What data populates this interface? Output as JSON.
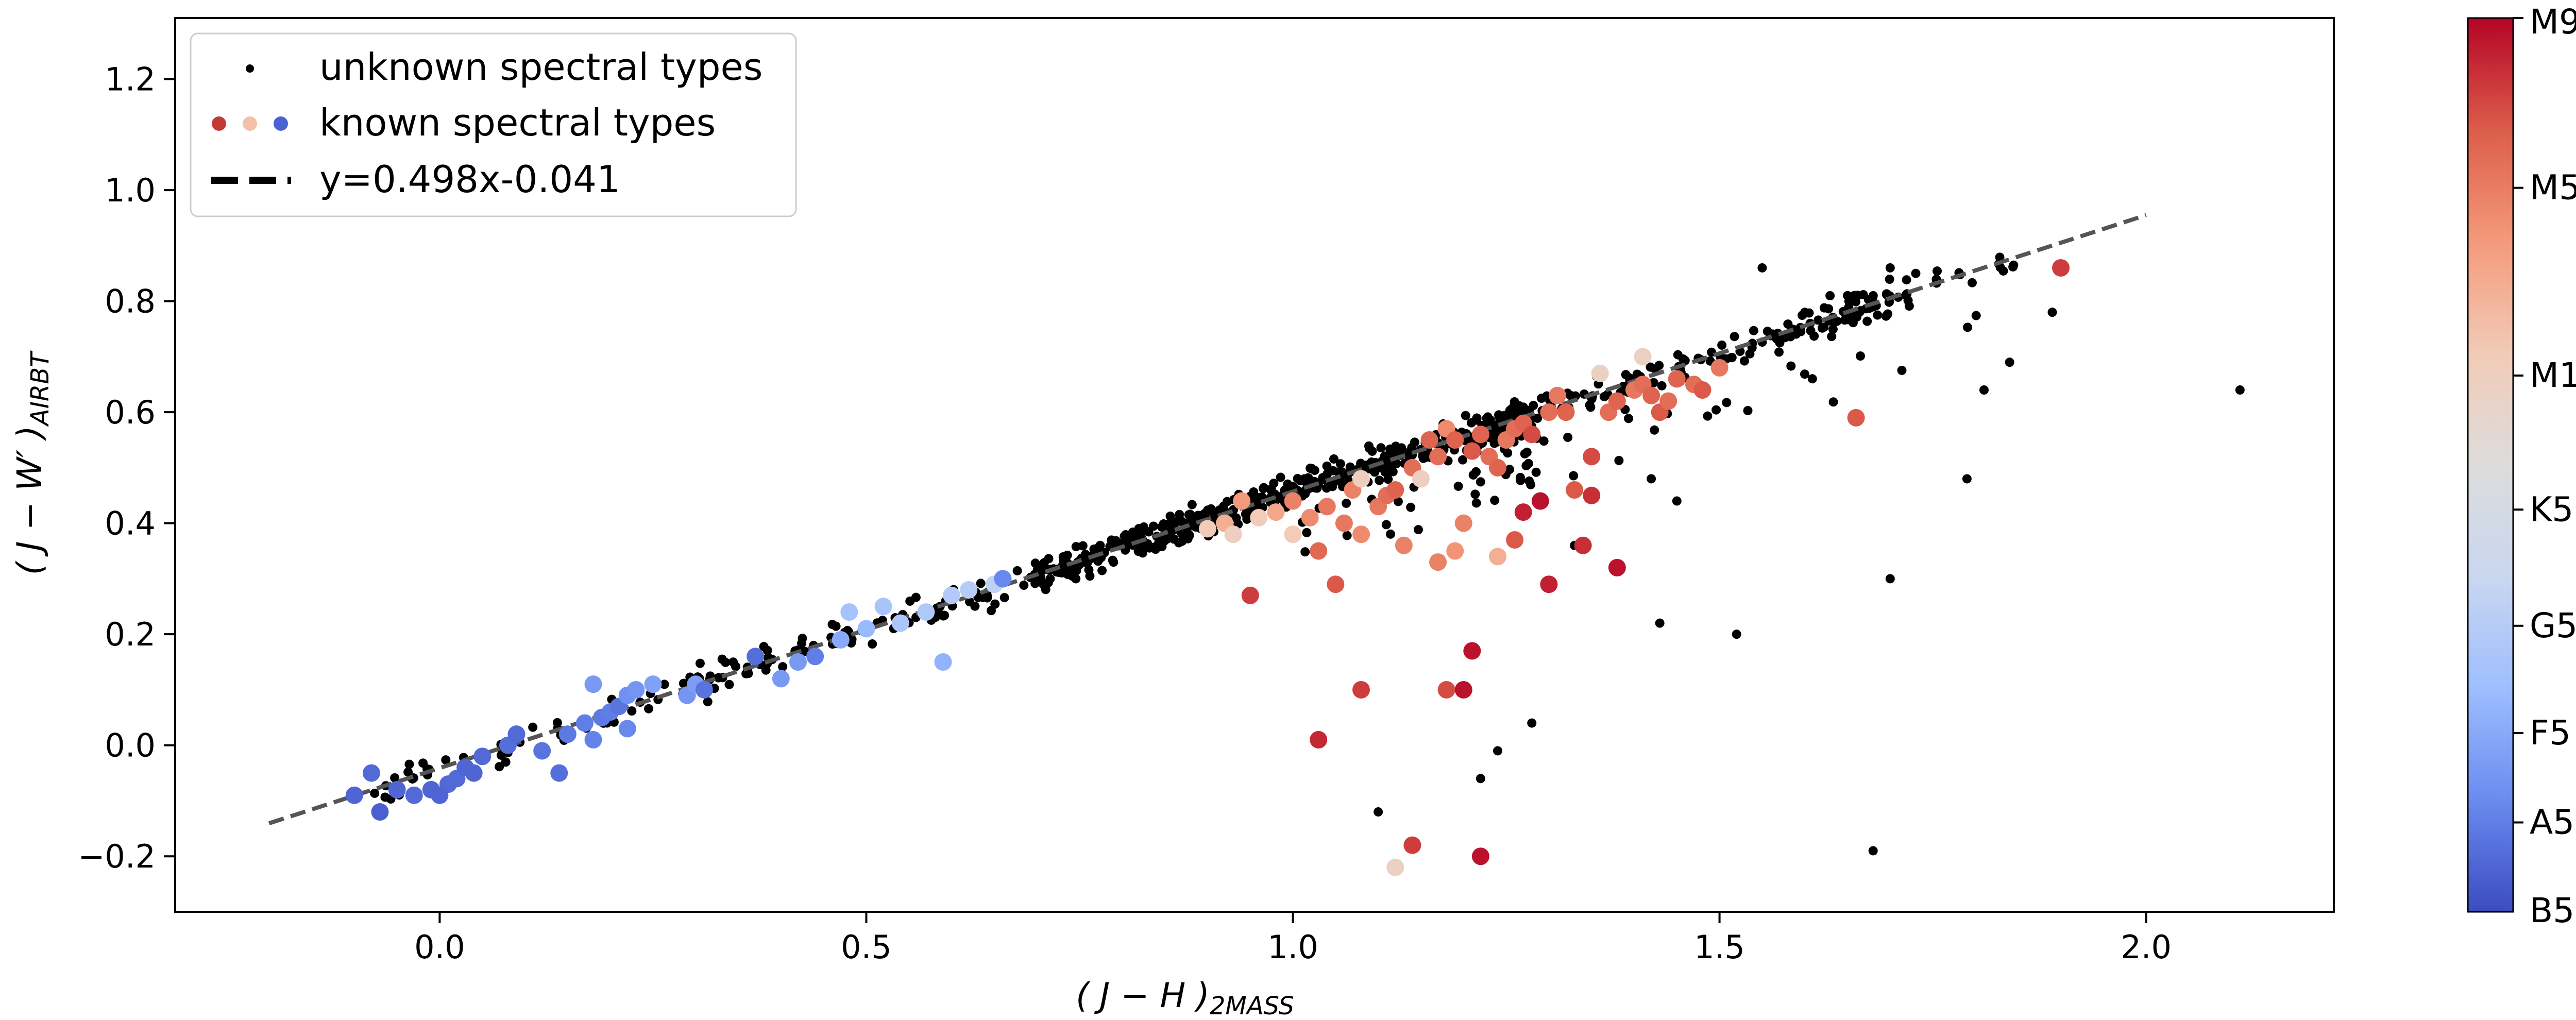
{
  "chart_data": {
    "type": "scatter",
    "xlabel": "( J − H )",
    "xlabel_sub": "2MASS",
    "ylabel": "( J − W′ )",
    "ylabel_sub": "AIRBT",
    "xlim": [
      -0.31,
      2.22
    ],
    "ylim": [
      -0.3,
      1.31
    ],
    "x_ticks": [
      0.0,
      0.5,
      1.0,
      1.5,
      2.0
    ],
    "x_tick_labels": [
      "0.0",
      "0.5",
      "1.0",
      "1.5",
      "2.0"
    ],
    "y_ticks": [
      -0.2,
      0.0,
      0.2,
      0.4,
      0.6,
      0.8,
      1.0,
      1.2
    ],
    "y_tick_labels": [
      "−0.2",
      "0.0",
      "0.2",
      "0.4",
      "0.6",
      "0.8",
      "1.0",
      "1.2"
    ],
    "fit_line": {
      "slope": 0.498,
      "intercept": -0.041,
      "x_range": [
        -0.2,
        2.0
      ],
      "color": "#555555"
    },
    "legend": {
      "position": "top-left",
      "entries": [
        {
          "label": "unknown spectral types",
          "marker": "dot-black"
        },
        {
          "label": "known spectral types",
          "marker": "dots-colored"
        },
        {
          "label": "y=0.498x-0.041",
          "marker": "dashed-line"
        }
      ]
    },
    "colorbar": {
      "labels": [
        "M9",
        "M5",
        "M1",
        "K5",
        "G5",
        "F5",
        "A5",
        "B5"
      ],
      "label_fraction": [
        1.0,
        0.81,
        0.6,
        0.45,
        0.32,
        0.2,
        0.1,
        -0.04
      ],
      "colors": [
        "#3b4cc0",
        "#6a8bef",
        "#9ebeff",
        "#c9d7f0",
        "#dddcdc",
        "#f2cbb7",
        "#f49a7b",
        "#dc5d4a",
        "#b40426"
      ]
    },
    "series": [
      {
        "name": "known spectral types",
        "points": [
          [
            -0.1,
            -0.09,
            0.05
          ],
          [
            -0.08,
            -0.05,
            0.06
          ],
          [
            -0.07,
            -0.12,
            0.04
          ],
          [
            -0.05,
            -0.08,
            0.05
          ],
          [
            -0.03,
            -0.09,
            0.06
          ],
          [
            -0.01,
            -0.08,
            0.05
          ],
          [
            0.01,
            -0.07,
            0.06
          ],
          [
            0.0,
            -0.09,
            0.05
          ],
          [
            0.02,
            -0.06,
            0.06
          ],
          [
            0.03,
            -0.04,
            0.05
          ],
          [
            0.05,
            -0.02,
            0.06
          ],
          [
            0.04,
            -0.05,
            0.05
          ],
          [
            0.08,
            0.0,
            0.07
          ],
          [
            0.09,
            0.02,
            0.06
          ],
          [
            0.12,
            -0.01,
            0.08
          ],
          [
            0.14,
            -0.05,
            0.07
          ],
          [
            0.15,
            0.02,
            0.09
          ],
          [
            0.17,
            0.04,
            0.1
          ],
          [
            0.18,
            0.01,
            0.11
          ],
          [
            0.19,
            0.05,
            0.09
          ],
          [
            0.2,
            0.06,
            0.1
          ],
          [
            0.21,
            0.07,
            0.08
          ],
          [
            0.22,
            0.03,
            0.12
          ],
          [
            0.22,
            0.09,
            0.14
          ],
          [
            0.23,
            0.1,
            0.15
          ],
          [
            0.18,
            0.11,
            0.16
          ],
          [
            0.25,
            0.11,
            0.18
          ],
          [
            0.29,
            0.09,
            0.15
          ],
          [
            0.3,
            0.11,
            0.17
          ],
          [
            0.31,
            0.1,
            0.08
          ],
          [
            0.37,
            0.16,
            0.07
          ],
          [
            0.4,
            0.12,
            0.16
          ],
          [
            0.42,
            0.15,
            0.16
          ],
          [
            0.44,
            0.16,
            0.1
          ],
          [
            0.47,
            0.19,
            0.2
          ],
          [
            0.48,
            0.24,
            0.27
          ],
          [
            0.5,
            0.21,
            0.24
          ],
          [
            0.52,
            0.25,
            0.28
          ],
          [
            0.54,
            0.22,
            0.29
          ],
          [
            0.57,
            0.24,
            0.3
          ],
          [
            0.59,
            0.15,
            0.22
          ],
          [
            0.6,
            0.27,
            0.31
          ],
          [
            0.62,
            0.28,
            0.32
          ],
          [
            0.65,
            0.29,
            0.35
          ],
          [
            0.66,
            0.3,
            0.12
          ],
          [
            0.9,
            0.39,
            0.62
          ],
          [
            0.92,
            0.4,
            0.7
          ],
          [
            0.93,
            0.38,
            0.6
          ],
          [
            0.94,
            0.44,
            0.75
          ],
          [
            0.95,
            0.27,
            0.92
          ],
          [
            0.96,
            0.41,
            0.62
          ],
          [
            0.98,
            0.42,
            0.72
          ],
          [
            1.0,
            0.44,
            0.8
          ],
          [
            1.0,
            0.38,
            0.62
          ],
          [
            1.02,
            0.41,
            0.78
          ],
          [
            1.03,
            0.35,
            0.85
          ],
          [
            1.04,
            0.43,
            0.82
          ],
          [
            1.05,
            0.29,
            0.88
          ],
          [
            1.06,
            0.4,
            0.82
          ],
          [
            1.07,
            0.46,
            0.8
          ],
          [
            1.08,
            0.38,
            0.78
          ],
          [
            1.08,
            0.48,
            0.6
          ],
          [
            1.1,
            0.43,
            0.82
          ],
          [
            1.11,
            0.45,
            0.84
          ],
          [
            1.12,
            0.46,
            0.86
          ],
          [
            1.13,
            0.36,
            0.8
          ],
          [
            1.14,
            0.5,
            0.84
          ],
          [
            1.15,
            0.48,
            0.6
          ],
          [
            1.16,
            0.55,
            0.86
          ],
          [
            1.17,
            0.52,
            0.84
          ],
          [
            1.18,
            0.57,
            0.78
          ],
          [
            1.19,
            0.55,
            0.86
          ],
          [
            1.2,
            0.4,
            0.8
          ],
          [
            1.21,
            0.53,
            0.88
          ],
          [
            1.22,
            0.56,
            0.86
          ],
          [
            1.23,
            0.52,
            0.84
          ],
          [
            1.24,
            0.5,
            0.86
          ],
          [
            1.25,
            0.55,
            0.82
          ],
          [
            1.26,
            0.57,
            0.84
          ],
          [
            1.27,
            0.58,
            0.86
          ],
          [
            1.28,
            0.56,
            0.9
          ],
          [
            1.3,
            0.6,
            0.84
          ],
          [
            1.31,
            0.63,
            0.82
          ],
          [
            1.32,
            0.6,
            0.86
          ],
          [
            1.33,
            0.46,
            0.88
          ],
          [
            1.35,
            0.52,
            0.9
          ],
          [
            1.36,
            0.67,
            0.58
          ],
          [
            1.37,
            0.6,
            0.84
          ],
          [
            1.38,
            0.62,
            0.86
          ],
          [
            1.4,
            0.64,
            0.82
          ],
          [
            1.41,
            0.65,
            0.84
          ],
          [
            1.42,
            0.63,
            0.86
          ],
          [
            1.43,
            0.6,
            0.88
          ],
          [
            1.44,
            0.62,
            0.84
          ],
          [
            1.45,
            0.66,
            0.86
          ],
          [
            1.47,
            0.65,
            0.84
          ],
          [
            1.48,
            0.64,
            0.88
          ],
          [
            1.5,
            0.68,
            0.82
          ],
          [
            1.41,
            0.7,
            0.58
          ],
          [
            1.03,
            0.01,
            0.95
          ],
          [
            1.08,
            0.1,
            0.92
          ],
          [
            1.14,
            -0.18,
            0.92
          ],
          [
            1.12,
            -0.22,
            0.58
          ],
          [
            1.18,
            0.1,
            0.9
          ],
          [
            1.2,
            0.1,
            0.98
          ],
          [
            1.21,
            0.17,
            0.98
          ],
          [
            1.22,
            -0.2,
            0.98
          ],
          [
            1.27,
            0.42,
            0.96
          ],
          [
            1.3,
            0.29,
            0.96
          ],
          [
            1.34,
            0.36,
            0.94
          ],
          [
            1.38,
            0.32,
            0.98
          ],
          [
            1.29,
            0.44,
            0.98
          ],
          [
            1.35,
            0.45,
            0.94
          ],
          [
            1.66,
            0.59,
            0.88
          ],
          [
            1.9,
            0.86,
            0.92
          ],
          [
            1.17,
            0.33,
            0.8
          ],
          [
            1.19,
            0.35,
            0.76
          ],
          [
            1.24,
            0.34,
            0.7
          ],
          [
            1.26,
            0.37,
            0.88
          ]
        ]
      }
    ]
  }
}
